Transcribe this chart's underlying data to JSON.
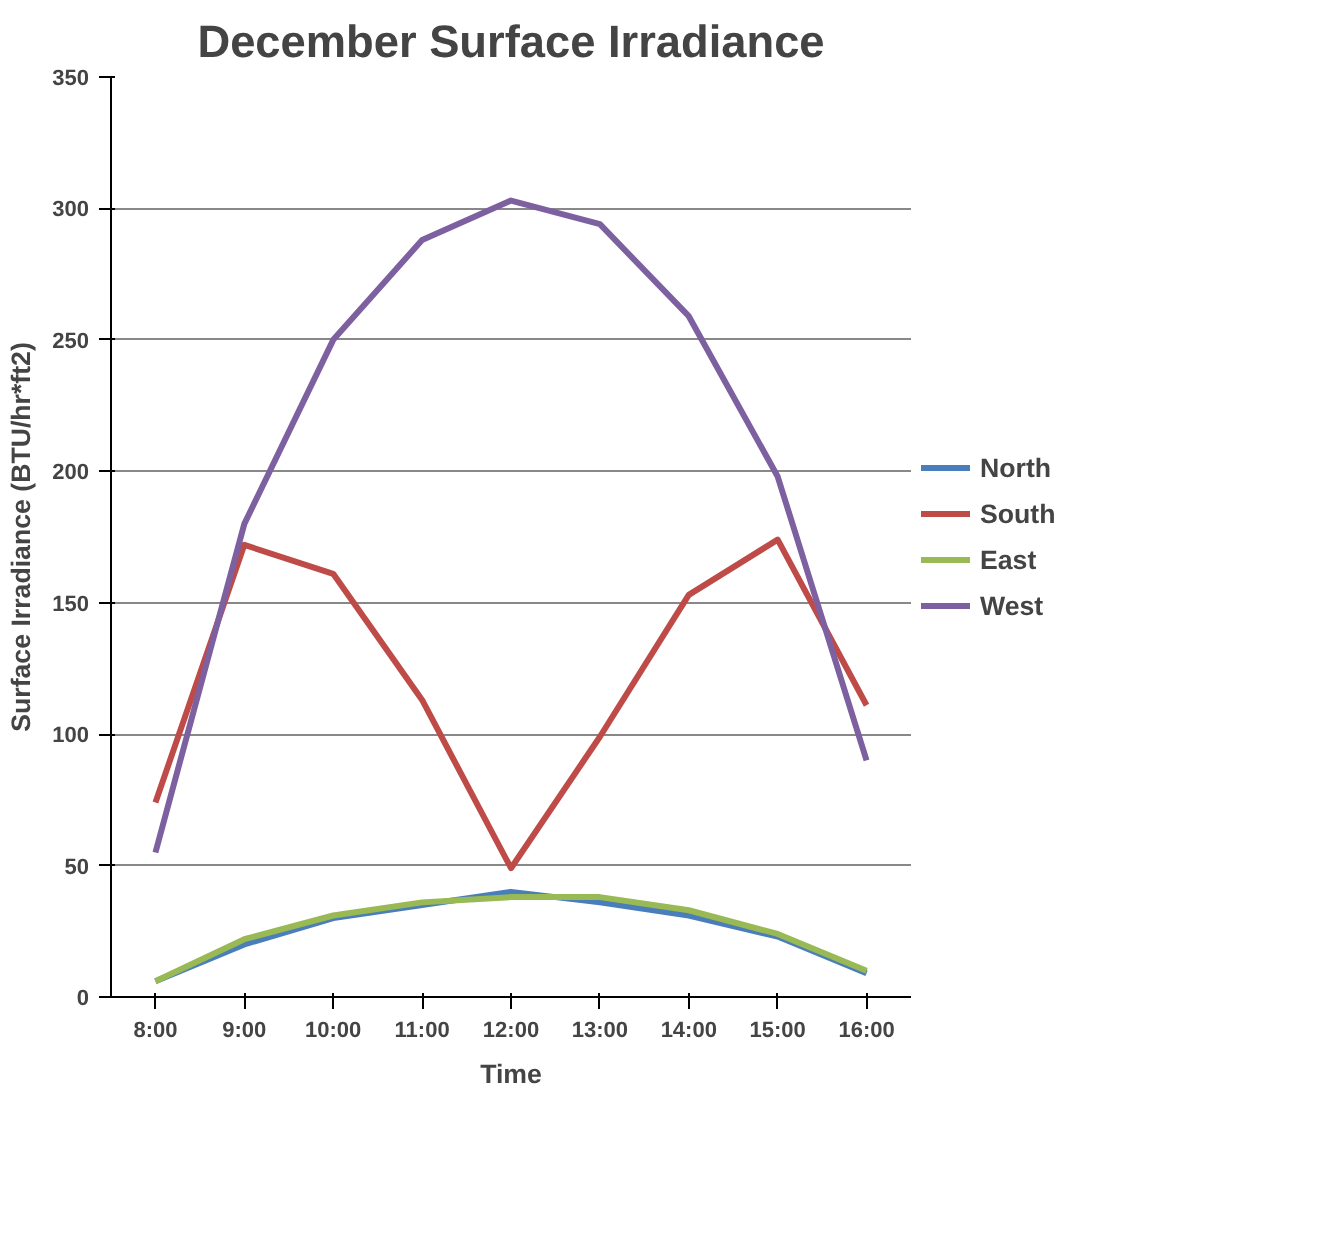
{
  "chart_data": {
    "type": "line",
    "title": "December Surface Irradiance",
    "xlabel": "Time",
    "ylabel": "Surface Irradiance (BTU/hr*ft2)",
    "categories": [
      "8:00",
      "9:00",
      "10:00",
      "11:00",
      "12:00",
      "13:00",
      "14:00",
      "15:00",
      "16:00"
    ],
    "series": [
      {
        "name": "North",
        "color": "#4a7ebb",
        "values": [
          6,
          20,
          30,
          35,
          40,
          36,
          31,
          23,
          9
        ]
      },
      {
        "name": "South",
        "color": "#be4b48",
        "values": [
          74,
          172,
          161,
          113,
          49,
          99,
          153,
          174,
          111
        ]
      },
      {
        "name": "East",
        "color": "#98b954",
        "values": [
          6,
          22,
          31,
          36,
          38,
          38,
          33,
          24,
          10
        ]
      },
      {
        "name": "West",
        "color": "#7d60a0",
        "values": [
          55,
          180,
          250,
          288,
          303,
          294,
          259,
          198,
          90
        ]
      }
    ],
    "ylim": [
      0,
      350
    ],
    "yticks": [
      0,
      50,
      100,
      150,
      200,
      250,
      300,
      350
    ],
    "grid": "y",
    "legend": "right",
    "marker": "none",
    "line_style": "solid"
  }
}
